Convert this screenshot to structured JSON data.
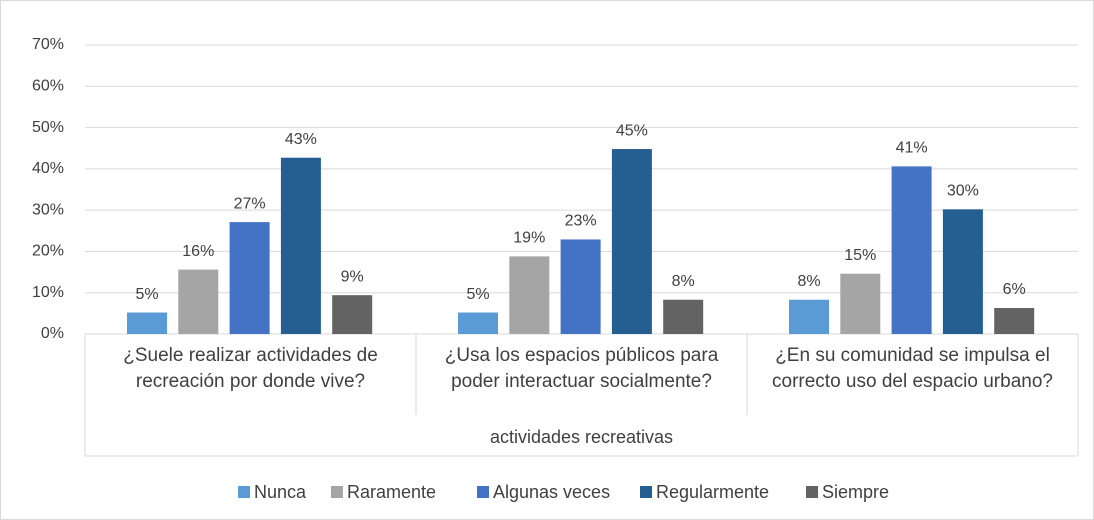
{
  "chart_data": {
    "type": "bar",
    "categories": [
      "¿Suele realizar actividades de recreación por donde vive?",
      "¿Usa los espacios públicos para poder interactuar socialmente?",
      "¿En su comunidad se impulsa el correcto uso del espacio urbano?"
    ],
    "x_label": "actividades recreativas",
    "series": [
      {
        "name": "Nunca",
        "color": "#5b9bd5",
        "values": [
          5.2,
          5.2,
          8.3
        ],
        "value_labels": [
          "5%",
          "5%",
          "8%"
        ]
      },
      {
        "name": "Raramente",
        "color": "#a5a5a5",
        "values": [
          15.6,
          18.8,
          14.6
        ],
        "value_labels": [
          "16%",
          "19%",
          "15%"
        ]
      },
      {
        "name": "Algunas veces",
        "color": "#4472c4",
        "values": [
          27.1,
          22.9,
          40.6
        ],
        "value_labels": [
          "27%",
          "23%",
          "41%"
        ]
      },
      {
        "name": "Regularmente",
        "color": "#255e91",
        "values": [
          42.7,
          44.8,
          30.2
        ],
        "value_labels": [
          "43%",
          "45%",
          "30%"
        ]
      },
      {
        "name": "Siempre",
        "color": "#636363",
        "values": [
          9.4,
          8.3,
          6.3
        ],
        "value_labels": [
          "9%",
          "8%",
          "6%"
        ]
      }
    ],
    "ylim": [
      0,
      70
    ],
    "yticks": [
      {
        "value": 0,
        "label": "0%"
      },
      {
        "value": 10,
        "label": "10%"
      },
      {
        "value": 20,
        "label": "20%"
      },
      {
        "value": 30,
        "label": "30%"
      },
      {
        "value": 40,
        "label": "40%"
      },
      {
        "value": 50,
        "label": "50%"
      },
      {
        "value": 60,
        "label": "60%"
      },
      {
        "value": 70,
        "label": "70%"
      }
    ],
    "grid": true,
    "legend": "bottom"
  }
}
